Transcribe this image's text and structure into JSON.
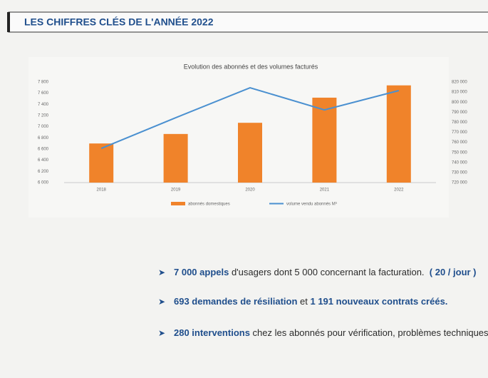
{
  "header": {
    "title": "LES CHIFFRES CLÉS DE L'ANNÉE 2022"
  },
  "chart_data": {
    "type": "bar_line",
    "title": "Evolution des abonnés et des volumes facturés",
    "categories": [
      "2018",
      "2019",
      "2020",
      "2021",
      "2022"
    ],
    "series": [
      {
        "name": "abonnés domestiques",
        "type": "bar",
        "color": "#f0832a",
        "values": [
          6700,
          6870,
          7070,
          7520,
          7740
        ]
      },
      {
        "name": "volume vendu abonnés M³",
        "type": "line",
        "axis": "y2",
        "color": "#4a90d0",
        "values": [
          754000,
          784500,
          814300,
          792300,
          811500
        ]
      }
    ],
    "ylim": [
      6000,
      7800
    ],
    "yticks": [
      {
        "value": 6000,
        "label": "6 000"
      },
      {
        "value": 6200,
        "label": "6 200"
      },
      {
        "value": 6400,
        "label": "6 400"
      },
      {
        "value": 6600,
        "label": "6 600"
      },
      {
        "value": 6800,
        "label": "6 800"
      },
      {
        "value": 7000,
        "label": "7 000"
      },
      {
        "value": 7200,
        "label": "7 200"
      },
      {
        "value": 7400,
        "label": "7 400"
      },
      {
        "value": 7600,
        "label": "7 600"
      },
      {
        "value": 7800,
        "label": "7 800"
      }
    ],
    "y2lim": [
      720000,
      820000
    ],
    "y2ticks": [
      {
        "value": 720000,
        "label": "720 000"
      },
      {
        "value": 730000,
        "label": "730 000"
      },
      {
        "value": 740000,
        "label": "740 000"
      },
      {
        "value": 750000,
        "label": "750 000"
      },
      {
        "value": 760000,
        "label": "760 000"
      },
      {
        "value": 770000,
        "label": "770 000"
      },
      {
        "value": 780000,
        "label": "780 000"
      },
      {
        "value": 790000,
        "label": "790 000"
      },
      {
        "value": 800000,
        "label": "800 000"
      },
      {
        "value": 810000,
        "label": "810 000"
      },
      {
        "value": 820000,
        "label": "820 000"
      }
    ],
    "legend": "bottom"
  },
  "bullets": [
    {
      "parts": [
        {
          "text": "7 000 appels",
          "bold": true
        },
        {
          "text": " d'usagers dont 5 000 concernant la facturation.  ",
          "bold": false
        },
        {
          "text": "( 20 / jour )",
          "bold": true
        }
      ]
    },
    {
      "parts": [
        {
          "text": "693 demandes de résiliation",
          "bold": true
        },
        {
          "text": " et ",
          "bold": false
        },
        {
          "text": "1 191 nouveaux contrats créés.",
          "bold": true
        }
      ]
    },
    {
      "parts": [
        {
          "text": "280 interventions",
          "bold": true
        },
        {
          "text": " chez les abonnés pour vérification, problèmes techniques",
          "bold": false
        }
      ]
    }
  ]
}
